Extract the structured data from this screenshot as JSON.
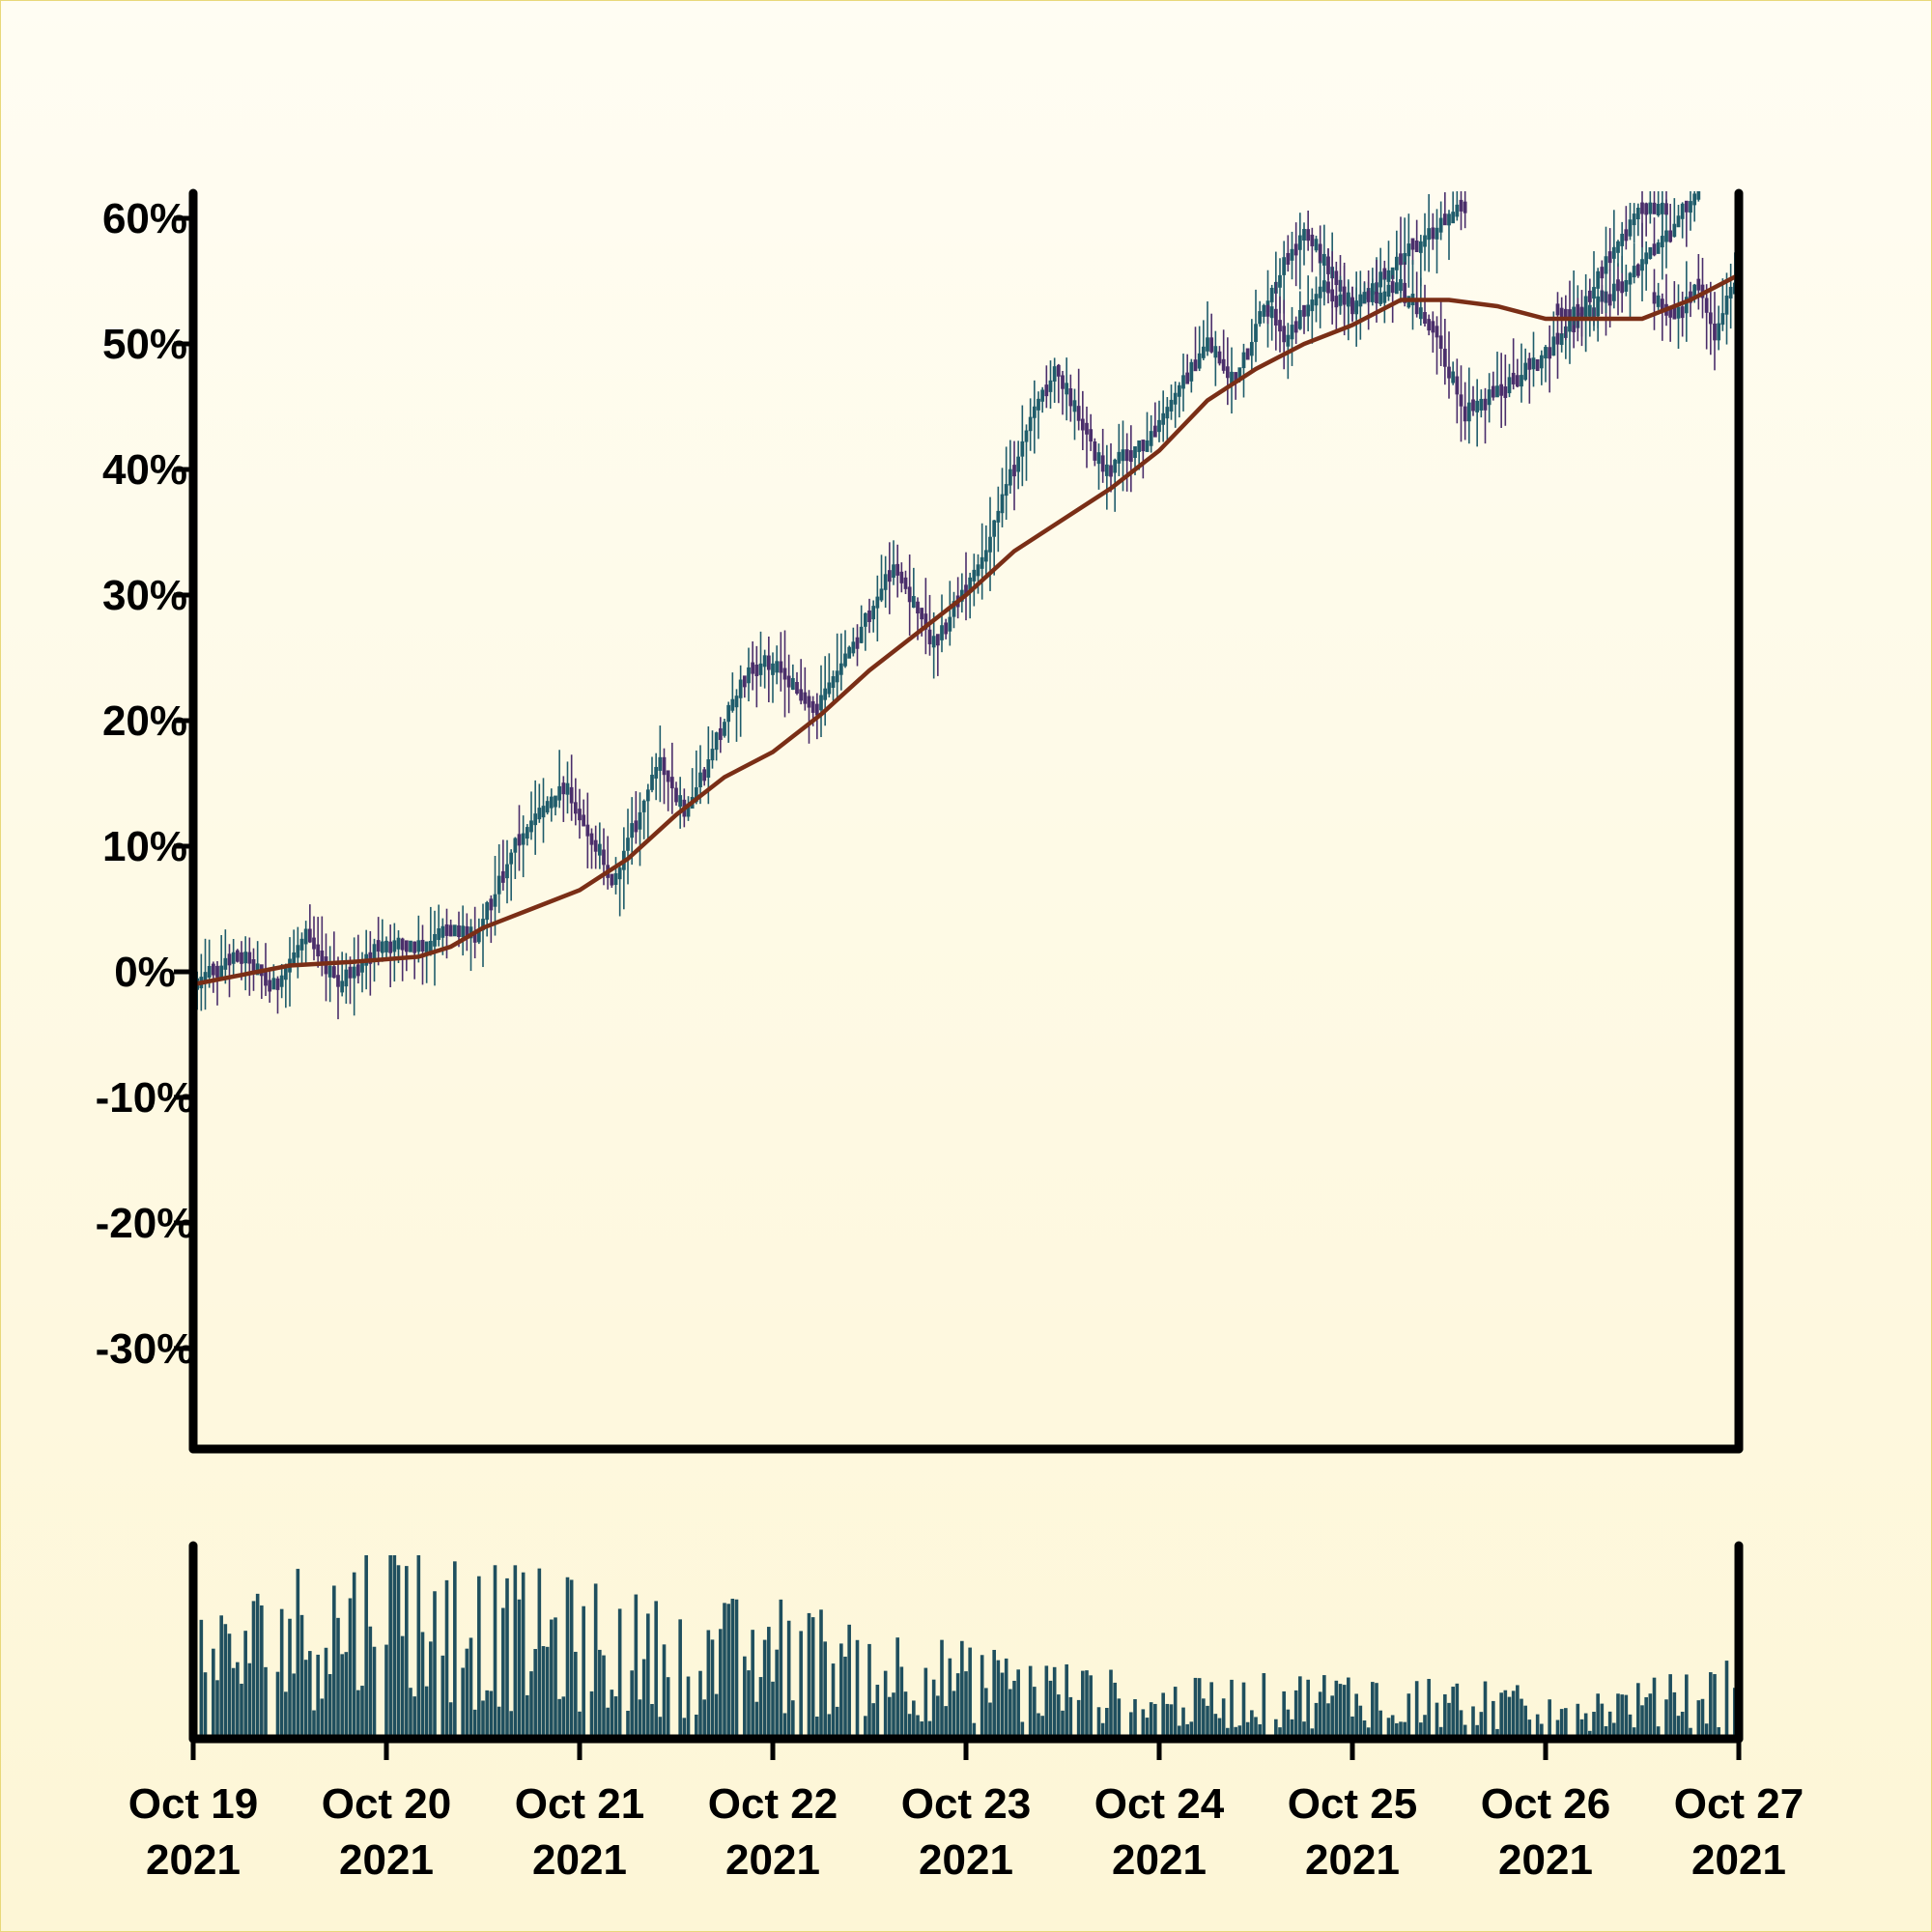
{
  "chart_data": [
    {
      "type": "candlestick",
      "y_unit": "%",
      "ylim": [
        -38,
        62
      ],
      "yticks": [
        -30,
        -20,
        -10,
        0,
        10,
        20,
        30,
        40,
        50,
        60
      ],
      "ytick_labels": [
        "-30%",
        "-20%",
        "-10%",
        "0%",
        "10%",
        "20%",
        "30%",
        "40%",
        "50%",
        "60%"
      ],
      "xlim": [
        "2021-10-19",
        "2021-10-27"
      ],
      "up_color": "#1f5c6b",
      "down_color": "#4a2e6b",
      "ma_color": "#7a2e16",
      "grid": false,
      "price_path": [
        [
          "2021-10-19T00:00",
          -1
        ],
        [
          "2021-10-19T06:00",
          1.5
        ],
        [
          "2021-10-19T10:00",
          -1.5
        ],
        [
          "2021-10-19T14:00",
          3
        ],
        [
          "2021-10-19T18:00",
          -1
        ],
        [
          "2021-10-20T00:00",
          2.5
        ],
        [
          "2021-10-20T04:00",
          2
        ],
        [
          "2021-10-20T08:00",
          3.5
        ],
        [
          "2021-10-20T11:00",
          2.5
        ],
        [
          "2021-10-20T16:00",
          10
        ],
        [
          "2021-10-20T22:00",
          15
        ],
        [
          "2021-10-21T04:00",
          7
        ],
        [
          "2021-10-21T10:00",
          17
        ],
        [
          "2021-10-21T13:00",
          12.5
        ],
        [
          "2021-10-21T20:00",
          23
        ],
        [
          "2021-10-21T23:00",
          25
        ],
        [
          "2021-10-22T05:00",
          21
        ],
        [
          "2021-10-22T10:00",
          26
        ],
        [
          "2021-10-22T15:00",
          32.5
        ],
        [
          "2021-10-22T20:00",
          26
        ],
        [
          "2021-10-23T02:00",
          33
        ],
        [
          "2021-10-23T08:00",
          44
        ],
        [
          "2021-10-23T11:00",
          48
        ],
        [
          "2021-10-23T17:00",
          40
        ],
        [
          "2021-10-23T22:00",
          42
        ],
        [
          "2021-10-24T06:00",
          50
        ],
        [
          "2021-10-24T09:00",
          47
        ],
        [
          "2021-10-24T16:00",
          57
        ],
        [
          "2021-10-24T18:00",
          59
        ],
        [
          "2021-10-25T00:00",
          53
        ],
        [
          "2021-10-25T08:00",
          58
        ],
        [
          "2021-10-25T14:00",
          61
        ]
      ],
      "price_path_2": [
        [
          "2021-10-24T13:00",
          53
        ],
        [
          "2021-10-24T16:00",
          50.5
        ],
        [
          "2021-10-24T20:00",
          54.5
        ],
        [
          "2021-10-25T00:00",
          53
        ],
        [
          "2021-10-25T06:00",
          54.5
        ],
        [
          "2021-10-25T10:00",
          51
        ],
        [
          "2021-10-25T14:00",
          44.5
        ],
        [
          "2021-10-25T22:00",
          48
        ],
        [
          "2021-10-26T04:00",
          52
        ],
        [
          "2021-10-26T10:00",
          55
        ],
        [
          "2021-10-26T14:00",
          58
        ],
        [
          "2021-10-26T19:00",
          62
        ]
      ],
      "price_path_3": [
        [
          "2021-10-26T01:00",
          53
        ],
        [
          "2021-10-26T04:00",
          52
        ],
        [
          "2021-10-26T08:00",
          57
        ],
        [
          "2021-10-26T12:00",
          61
        ],
        [
          "2021-10-26T15:00",
          61
        ]
      ],
      "price_path_4": [
        [
          "2021-10-26T13:00",
          54
        ],
        [
          "2021-10-26T16:00",
          52
        ],
        [
          "2021-10-26T19:00",
          54.5
        ],
        [
          "2021-10-26T21:00",
          50.5
        ],
        [
          "2021-10-27T00:00",
          56
        ],
        [
          "2021-10-27T02:00",
          61
        ]
      ],
      "moving_average": [
        [
          "2021-10-19T00:00",
          -1
        ],
        [
          "2021-10-19T12:00",
          0.5
        ],
        [
          "2021-10-19T20:00",
          0.8
        ],
        [
          "2021-10-20T04:00",
          1.2
        ],
        [
          "2021-10-20T08:00",
          2
        ],
        [
          "2021-10-20T12:00",
          3.5
        ],
        [
          "2021-10-20T18:00",
          5
        ],
        [
          "2021-10-21T00:00",
          6.5
        ],
        [
          "2021-10-21T06:00",
          9
        ],
        [
          "2021-10-21T12:00",
          12.5
        ],
        [
          "2021-10-21T18:00",
          15.5
        ],
        [
          "2021-10-22T00:00",
          17.5
        ],
        [
          "2021-10-22T06:00",
          20.5
        ],
        [
          "2021-10-22T12:00",
          24
        ],
        [
          "2021-10-22T18:00",
          27
        ],
        [
          "2021-10-23T00:00",
          30
        ],
        [
          "2021-10-23T06:00",
          33.5
        ],
        [
          "2021-10-23T12:00",
          36
        ],
        [
          "2021-10-23T18:00",
          38.5
        ],
        [
          "2021-10-24T00:00",
          41.5
        ],
        [
          "2021-10-24T06:00",
          45.5
        ],
        [
          "2021-10-24T12:00",
          48
        ],
        [
          "2021-10-24T18:00",
          50
        ],
        [
          "2021-10-25T00:00",
          51.5
        ],
        [
          "2021-10-25T06:00",
          53.5
        ],
        [
          "2021-10-25T12:00",
          53.5
        ],
        [
          "2021-10-25T18:00",
          53
        ],
        [
          "2021-10-26T00:00",
          52
        ],
        [
          "2021-10-26T06:00",
          52
        ],
        [
          "2021-10-26T12:00",
          52
        ],
        [
          "2021-10-26T18:00",
          53.5
        ],
        [
          "2021-10-27T00:00",
          55.5
        ]
      ]
    },
    {
      "type": "bar",
      "xlim": [
        "2021-10-19",
        "2021-10-27"
      ],
      "bar_color": "#1f4f5e",
      "xtick_labels": [
        [
          "Oct 19",
          "2021"
        ],
        [
          "Oct 20",
          "2021"
        ],
        [
          "Oct 21",
          "2021"
        ],
        [
          "Oct 22",
          "2021"
        ],
        [
          "Oct 23",
          "2021"
        ],
        [
          "Oct 24",
          "2021"
        ],
        [
          "Oct 25",
          "2021"
        ],
        [
          "Oct 26",
          "2021"
        ],
        [
          "Oct 27",
          "2021"
        ]
      ],
      "volume_profile": [
        [
          "2021-10-19T00:00",
          0.35
        ],
        [
          "2021-10-19T12:00",
          0.55
        ],
        [
          "2021-10-19T20:00",
          0.6
        ],
        [
          "2021-10-20T00:00",
          0.7
        ],
        [
          "2021-10-20T12:00",
          0.55
        ],
        [
          "2021-10-21T00:00",
          0.5
        ],
        [
          "2021-10-21T12:00",
          0.42
        ],
        [
          "2021-10-22T00:00",
          0.45
        ],
        [
          "2021-10-22T12:00",
          0.38
        ],
        [
          "2021-10-23T00:00",
          0.3
        ],
        [
          "2021-10-23T12:00",
          0.25
        ],
        [
          "2021-10-24T00:00",
          0.18
        ],
        [
          "2021-10-24T12:00",
          0.2
        ],
        [
          "2021-10-25T00:00",
          0.22
        ],
        [
          "2021-10-25T12:00",
          0.2
        ],
        [
          "2021-10-26T00:00",
          0.15
        ],
        [
          "2021-10-26T12:00",
          0.18
        ],
        [
          "2021-10-27T00:00",
          0.25
        ]
      ]
    }
  ]
}
